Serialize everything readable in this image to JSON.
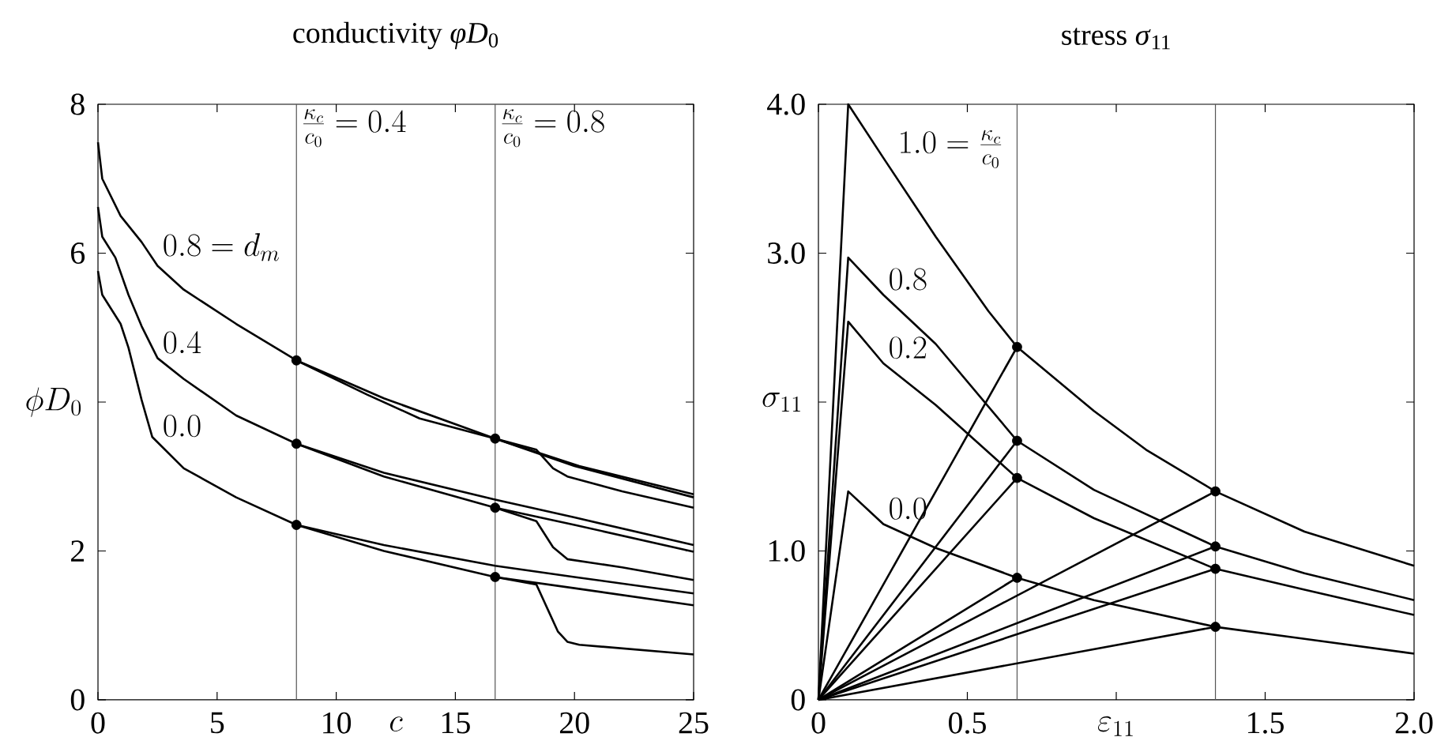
{
  "chart_data": [
    {
      "type": "line",
      "title": "conductivity *φD*$_{0}$",
      "xlabel": "c",
      "ylabel": "\\phi D_0",
      "xlim": [
        0,
        25
      ],
      "ylim": [
        0,
        8
      ],
      "xticks": [
        0,
        5,
        10,
        15,
        20,
        25
      ],
      "yticks": [
        0,
        2,
        {
          "value": 4,
          "label": null
        },
        6,
        8
      ],
      "ref_lines": [
        {
          "axis": "x",
          "value": 8.33,
          "color": "#555555"
        },
        {
          "axis": "x",
          "value": 16.67,
          "color": "#555555"
        }
      ],
      "annotations": [
        {
          "text": "\\frac{\\kappa_c}{c_0}=0.4",
          "x": 8.33,
          "y": 8
        },
        {
          "text": "\\frac{\\kappa_c}{c_0}=0.8",
          "x": 16.67,
          "y": 8
        },
        {
          "text": "0.8=d_m",
          "x": 2.5,
          "y": 5.83
        },
        {
          "text": "0.4",
          "x": 2.5,
          "y": 4.59
        },
        {
          "text": "0.0",
          "x": 2.5,
          "y": 3.47
        }
      ],
      "series": [
        {
          "color": "#000000",
          "x": [
            0,
            0.18,
            0.95,
            1.83,
            2.5,
            3.6,
            5.8,
            8.33,
            11.3,
            13.5,
            16.67,
            20.2,
            25
          ],
          "values": [
            7.49,
            7.0,
            6.5,
            6.15,
            5.83,
            5.51,
            5.05,
            4.56,
            4.1,
            3.78,
            3.51,
            3.14,
            2.76
          ]
        },
        {
          "color": "#000000",
          "x": [
            8.33,
            12,
            16.67,
            20,
            25
          ],
          "values": [
            4.56,
            4.05,
            3.51,
            3.14,
            2.72
          ]
        },
        {
          "color": "#000000",
          "x": [
            16.67,
            18.4,
            19.1,
            19.7,
            22,
            25
          ],
          "values": [
            3.51,
            3.36,
            3.11,
            3.0,
            2.8,
            2.58
          ]
        },
        {
          "color": "#000000",
          "x": [
            0,
            0.18,
            0.73,
            1.28,
            1.83,
            2.5,
            3.6,
            5.8,
            8.33,
            12,
            16.67,
            20,
            25
          ],
          "values": [
            6.62,
            6.22,
            5.94,
            5.44,
            5.02,
            4.59,
            4.31,
            3.82,
            3.44,
            3.05,
            2.69,
            2.45,
            2.08
          ]
        },
        {
          "color": "#000000",
          "x": [
            8.33,
            12,
            16.67,
            20,
            25
          ],
          "values": [
            3.44,
            3.0,
            2.58,
            2.35,
            1.99
          ]
        },
        {
          "color": "#000000",
          "x": [
            16.67,
            18.4,
            19.1,
            19.7,
            22,
            25
          ],
          "values": [
            2.58,
            2.4,
            2.05,
            1.89,
            1.78,
            1.61
          ]
        },
        {
          "color": "#000000",
          "x": [
            0,
            0.18,
            0.95,
            1.28,
            1.83,
            2.28,
            3.6,
            5.8,
            8.33,
            12,
            16.67,
            20,
            25
          ],
          "values": [
            5.76,
            5.44,
            5.05,
            4.73,
            4.03,
            3.53,
            3.11,
            2.72,
            2.35,
            2.08,
            1.8,
            1.65,
            1.43
          ]
        },
        {
          "color": "#000000",
          "x": [
            8.33,
            12,
            16.67,
            20,
            25
          ],
          "values": [
            2.35,
            2.0,
            1.65,
            1.5,
            1.27
          ]
        },
        {
          "color": "#000000",
          "x": [
            16.67,
            18.4,
            18.9,
            19.3,
            19.7,
            20.2,
            25
          ],
          "values": [
            1.65,
            1.55,
            1.2,
            0.92,
            0.78,
            0.74,
            0.61
          ]
        },
        {
          "type": "scatter",
          "marker": "circle",
          "color": "#000000",
          "x": [
            8.33,
            8.33,
            8.33,
            16.67,
            16.67,
            16.67
          ],
          "values": [
            4.56,
            3.44,
            2.35,
            3.51,
            2.58,
            1.65
          ]
        }
      ]
    },
    {
      "type": "line",
      "title": "stress *σ*$_{11}$",
      "xlabel": "\\varepsilon_{11}",
      "ylabel": "\\sigma_{11}",
      "xlim": [
        0,
        2
      ],
      "ylim": [
        0,
        4
      ],
      "xticks": [
        0,
        0.5,
        {
          "value": 1,
          "label": null
        },
        1.5,
        {
          "value": 2,
          "label": "2.0"
        }
      ],
      "yticks": [
        0,
        {
          "value": 1,
          "label": "1.0"
        },
        {
          "value": 2,
          "label": null
        },
        {
          "value": 3,
          "label": "3.0"
        },
        {
          "value": 4,
          "label": "4.0"
        }
      ],
      "ref_lines": [
        {
          "axis": "x",
          "value": 0.667,
          "color": "#555555"
        },
        {
          "axis": "x",
          "value": 1.333,
          "color": "#555555"
        }
      ],
      "annotations": [
        {
          "text": "1.0=\\frac{\\kappa_c}{c_0}",
          "x": 0.25,
          "y": 3.54
        },
        {
          "text": "0.8",
          "x": 0.218,
          "y": 2.72
        },
        {
          "text": "0.2",
          "x": 0.218,
          "y": 2.26
        },
        {
          "text": "0.0",
          "x": 0.218,
          "y": 1.18
        }
      ],
      "series": [
        {
          "color": "#000000",
          "x": [
            0,
            0.1,
            0.218,
            0.394,
            0.571,
            0.667,
            0.925,
            1.1,
            1.333,
            1.632,
            2.0
          ],
          "values": [
            0,
            4.0,
            3.64,
            3.11,
            2.61,
            2.37,
            1.94,
            1.68,
            1.4,
            1.13,
            0.9
          ]
        },
        {
          "color": "#000000",
          "x": [
            0,
            0.1,
            0.218,
            0.394,
            0.667,
            0.925,
            1.333,
            1.632,
            2.0
          ],
          "values": [
            0,
            2.97,
            2.72,
            2.39,
            1.74,
            1.41,
            1.03,
            0.85,
            0.67
          ]
        },
        {
          "color": "#000000",
          "x": [
            0,
            0.1,
            0.218,
            0.394,
            0.667,
            0.925,
            1.333,
            1.632,
            2.0
          ],
          "values": [
            0,
            2.54,
            2.26,
            1.98,
            1.49,
            1.22,
            0.88,
            0.74,
            0.57
          ]
        },
        {
          "color": "#000000",
          "x": [
            0,
            0.1,
            0.218,
            0.394,
            0.667,
            0.925,
            1.333,
            1.632,
            2.0
          ],
          "values": [
            0,
            1.4,
            1.18,
            1.02,
            0.82,
            0.67,
            0.49,
            0.41,
            0.31
          ]
        },
        {
          "color": "#000000",
          "x": [
            0,
            0.667
          ],
          "values": [
            0,
            2.37
          ]
        },
        {
          "color": "#000000",
          "x": [
            0,
            0.667
          ],
          "values": [
            0,
            1.74
          ]
        },
        {
          "color": "#000000",
          "x": [
            0,
            0.667
          ],
          "values": [
            0,
            1.49
          ]
        },
        {
          "color": "#000000",
          "x": [
            0,
            0.667
          ],
          "values": [
            0,
            0.82
          ]
        },
        {
          "color": "#000000",
          "x": [
            0,
            1.333
          ],
          "values": [
            0,
            1.4
          ]
        },
        {
          "color": "#000000",
          "x": [
            0,
            1.333
          ],
          "values": [
            0,
            1.03
          ]
        },
        {
          "color": "#000000",
          "x": [
            0,
            1.333
          ],
          "values": [
            0,
            0.88
          ]
        },
        {
          "color": "#000000",
          "x": [
            0,
            1.333
          ],
          "values": [
            0,
            0.49
          ]
        },
        {
          "type": "scatter",
          "marker": "circle",
          "color": "#000000",
          "x": [
            0.667,
            0.667,
            0.667,
            0.667,
            1.333,
            1.333,
            1.333,
            1.333
          ],
          "values": [
            2.37,
            1.74,
            1.49,
            0.82,
            1.4,
            1.03,
            0.88,
            0.49
          ]
        }
      ]
    }
  ]
}
